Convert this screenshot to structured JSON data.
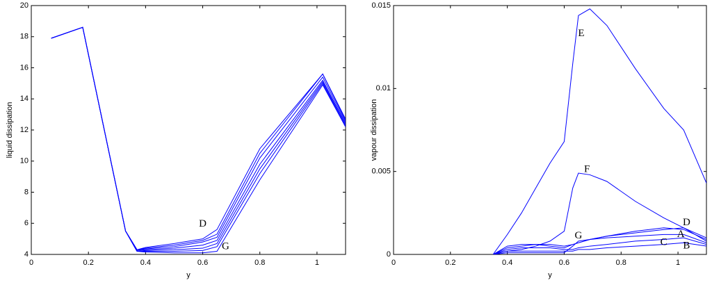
{
  "chart_data": [
    {
      "type": "line",
      "xlabel": "y",
      "ylabel": "liquid dissipation",
      "xlim": [
        0,
        1.1
      ],
      "ylim": [
        4,
        20
      ],
      "xticks": [
        0,
        0.2,
        0.4,
        0.6,
        0.8,
        1
      ],
      "yticks": [
        4,
        6,
        8,
        10,
        12,
        14,
        16,
        18,
        20
      ],
      "x": [
        0.07,
        0.18,
        0.33,
        0.37,
        0.4,
        0.5,
        0.6,
        0.65,
        0.8,
        1.02,
        1.1
      ],
      "series": [
        {
          "color": "#0000ff",
          "values": [
            17.9,
            18.6,
            5.5,
            4.3,
            4.4,
            4.6,
            4.9,
            5.3,
            10.5,
            15.6,
            12.6
          ]
        },
        {
          "color": "#0000ff",
          "values": [
            17.9,
            18.6,
            5.5,
            4.3,
            4.35,
            4.5,
            4.8,
            5.1,
            10.2,
            15.4,
            12.5
          ]
        },
        {
          "color": "#0000ff",
          "values": [
            17.9,
            18.6,
            5.5,
            4.25,
            4.3,
            4.4,
            4.6,
            4.9,
            9.8,
            15.2,
            12.4
          ]
        },
        {
          "color": "#0000ff",
          "values": [
            17.9,
            18.6,
            5.5,
            4.3,
            4.45,
            4.7,
            5.0,
            5.6,
            10.8,
            15.6,
            12.7
          ]
        },
        {
          "color": "#0000ff",
          "values": [
            17.9,
            18.6,
            5.5,
            4.2,
            4.25,
            4.3,
            4.4,
            4.7,
            9.5,
            15.1,
            12.3
          ]
        },
        {
          "color": "#0000ff",
          "values": [
            17.9,
            18.6,
            5.5,
            4.2,
            4.2,
            4.2,
            4.25,
            4.5,
            9.2,
            15.0,
            12.2
          ]
        },
        {
          "color": "#0000ff",
          "values": [
            17.9,
            18.6,
            5.5,
            4.2,
            4.15,
            4.1,
            4.1,
            4.2,
            8.8,
            14.9,
            12.2
          ]
        }
      ],
      "annotations": [
        {
          "text": "D",
          "x": 0.6,
          "y": 5.95
        },
        {
          "text": "G",
          "x": 0.68,
          "y": 4.5
        }
      ]
    },
    {
      "type": "line",
      "xlabel": "y",
      "ylabel": "vapour dissipation",
      "xlim": [
        0,
        1.1
      ],
      "ylim": [
        0,
        0.015
      ],
      "xticks": [
        0,
        0.2,
        0.4,
        0.6,
        0.8,
        1
      ],
      "yticks": [
        0,
        0.005,
        0.01,
        0.015
      ],
      "x": [
        0.35,
        0.4,
        0.45,
        0.5,
        0.55,
        0.6,
        0.63,
        0.65,
        0.69,
        0.75,
        0.85,
        0.95,
        1.02,
        1.1
      ],
      "series": [
        {
          "color": "#0000ff",
          "values": [
            0,
            0.0012,
            0.0025,
            0.004,
            0.0055,
            0.0068,
            0.0115,
            0.0144,
            0.0148,
            0.0138,
            0.0112,
            0.0088,
            0.0075,
            0.0043
          ]
        },
        {
          "color": "#0000ff",
          "values": [
            0,
            0.0002,
            0.0003,
            0.0005,
            0.0008,
            0.0014,
            0.004,
            0.0049,
            0.0048,
            0.0044,
            0.0032,
            0.0022,
            0.0016,
            0.001
          ]
        },
        {
          "color": "#0000ff",
          "values": [
            0,
            0.0005,
            0.0006,
            0.0006,
            0.0005,
            0.0004,
            0.0006,
            0.0007,
            0.0009,
            0.0011,
            0.0014,
            0.0016,
            0.0015,
            0.0009
          ]
        },
        {
          "color": "#0000ff",
          "values": [
            0,
            0.0002,
            0.0002,
            0.0002,
            0.0002,
            0.0002,
            0.0002,
            0.0003,
            0.0003,
            0.0004,
            0.0005,
            0.0006,
            0.0007,
            0.0005
          ]
        },
        {
          "color": "#0000ff",
          "values": [
            0,
            0.0003,
            0.0004,
            0.0004,
            0.0004,
            0.0003,
            0.0003,
            0.0004,
            0.0005,
            0.0006,
            0.0008,
            0.0009,
            0.001,
            0.0006
          ]
        },
        {
          "color": "#0000ff",
          "values": [
            0,
            0.0004,
            0.0005,
            0.0006,
            0.0006,
            0.0005,
            0.0006,
            0.0007,
            0.0009,
            0.0011,
            0.0013,
            0.0015,
            0.0016,
            0.0008
          ]
        },
        {
          "color": "#0000ff",
          "values": [
            0,
            0.0001,
            0.0001,
            0.0001,
            0.0001,
            0.0001,
            0.0005,
            0.0008,
            0.0009,
            0.001,
            0.0011,
            0.0012,
            0.0012,
            0.0007
          ]
        }
      ],
      "annotations": [
        {
          "text": "E",
          "x": 0.66,
          "y": 0.0133
        },
        {
          "text": "F",
          "x": 0.68,
          "y": 0.0051
        },
        {
          "text": "G",
          "x": 0.65,
          "y": 0.0011
        },
        {
          "text": "D",
          "x": 1.03,
          "y": 0.0019
        },
        {
          "text": "A",
          "x": 1.01,
          "y": 0.0012
        },
        {
          "text": "C",
          "x": 0.95,
          "y": 0.0007
        },
        {
          "text": "B",
          "x": 1.03,
          "y": 0.0005
        }
      ]
    }
  ]
}
